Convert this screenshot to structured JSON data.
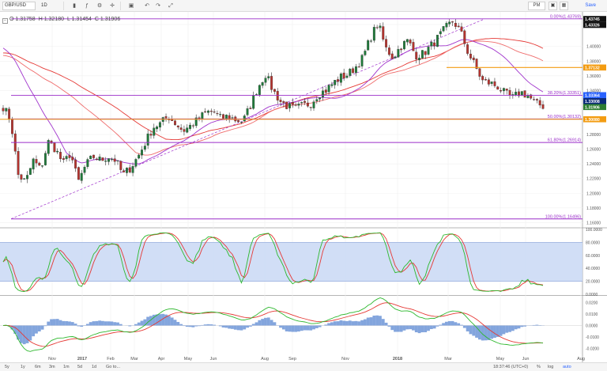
{
  "toolbar": {
    "symbol": "GBP/USD",
    "interval": "1D",
    "icons": [
      "candles-icon",
      "indicators-icon",
      "settings-icon",
      "crosshair-icon",
      "undo-icon",
      "redo-icon",
      "fullscreen-icon"
    ],
    "layout_label": "PM",
    "save_label": "Save"
  },
  "ohlc": {
    "open": "O 1.31758",
    "high": "H 1.32180",
    "low": "L 1.31454",
    "close": "C 1.31906"
  },
  "price_axis": {
    "ticks": [
      "1.43000",
      "1.40000",
      "1.38000",
      "1.36000",
      "1.34000",
      "1.32000",
      "1.30000",
      "1.28000",
      "1.26000",
      "1.24000",
      "1.22000",
      "1.20000",
      "1.18000",
      "1.16000"
    ],
    "tick_values": [
      1.43,
      1.4,
      1.38,
      1.36,
      1.34,
      1.32,
      1.3,
      1.28,
      1.26,
      1.24,
      1.22,
      1.2,
      1.18,
      1.16
    ],
    "labels": [
      {
        "text": "1.43745",
        "value": 1.43745,
        "color": "#111111"
      },
      {
        "text": "1.43326",
        "value": 1.43326,
        "color": "#111111"
      },
      {
        "text": "1.37132",
        "value": 1.37132,
        "color": "#f39c12"
      },
      {
        "text": "1.33364",
        "value": 1.33364,
        "color": "#2962ff"
      },
      {
        "text": "1.33008",
        "value": 1.33008,
        "color": "#0b2a7a"
      },
      {
        "text": "1.31906",
        "value": 1.31906,
        "color": "#2e7d32"
      },
      {
        "text": "1.30080",
        "value": 1.3008,
        "color": "#f39c12"
      }
    ]
  },
  "fib_levels": [
    {
      "text": "0.00%(1.43769)",
      "value": 1.43769,
      "color": "#9b2fc9"
    },
    {
      "text": "38.20%(1.33351)",
      "value": 1.33351,
      "color": "#9b2fc9"
    },
    {
      "text": "50.00%(1.30132)",
      "value": 1.30132,
      "color": "#9b2fc9"
    },
    {
      "text": "61.80%(1.26914)",
      "value": 1.26914,
      "color": "#9b2fc9"
    },
    {
      "text": "100.00%(1.16496)",
      "value": 1.16496,
      "color": "#9b2fc9"
    }
  ],
  "stoch_axis": [
    "100.0000",
    "80.0000",
    "60.0000",
    "40.0000",
    "20.0000",
    "0.0000"
  ],
  "macd_axis": [
    "0.0200",
    "0.0100",
    "0.0000",
    "-0.0100",
    "-0.0200"
  ],
  "time_axis": [
    "Nov",
    "2017",
    "Feb",
    "Mar",
    "Apr",
    "May",
    "Jun",
    "Aug",
    "Sep",
    "Nov",
    "2018",
    "Mar",
    "May",
    "Jun",
    "Aug"
  ],
  "bottombar": {
    "ranges": [
      "5y",
      "1y",
      "6m",
      "3m",
      "1m",
      "5d",
      "1d"
    ],
    "goto": "Go to...",
    "time": "18:37:46 (UTC+0)",
    "percent": "%",
    "log": "log",
    "auto": "auto"
  },
  "colors": {
    "up": "#26a69a",
    "down": "#ef5350",
    "purple": "#9b2fc9",
    "orange": "#f39c12",
    "band": "#c9d8f5"
  },
  "chart_data": {
    "type": "candlestick",
    "instrument": "GBP/USD",
    "approx_close_path": [
      1.318,
      1.3,
      1.225,
      1.215,
      1.245,
      1.232,
      1.27,
      1.26,
      1.24,
      1.255,
      1.215,
      1.238,
      1.25,
      1.245,
      1.25,
      1.245,
      1.225,
      1.235,
      1.25,
      1.27,
      1.29,
      1.295,
      1.305,
      1.295,
      1.285,
      1.292,
      1.3,
      1.31,
      1.312,
      1.302,
      1.305,
      1.3,
      1.298,
      1.32,
      1.345,
      1.362,
      1.34,
      1.325,
      1.318,
      1.315,
      1.32,
      1.322,
      1.335,
      1.34,
      1.35,
      1.358,
      1.362,
      1.372,
      1.385,
      1.412,
      1.432,
      1.398,
      1.385,
      1.4,
      1.408,
      1.388,
      1.39,
      1.4,
      1.412,
      1.425,
      1.435,
      1.42,
      1.392,
      1.372,
      1.352,
      1.35,
      1.345,
      1.335,
      1.33,
      1.338,
      1.333,
      1.322,
      1.319
    ]
  }
}
